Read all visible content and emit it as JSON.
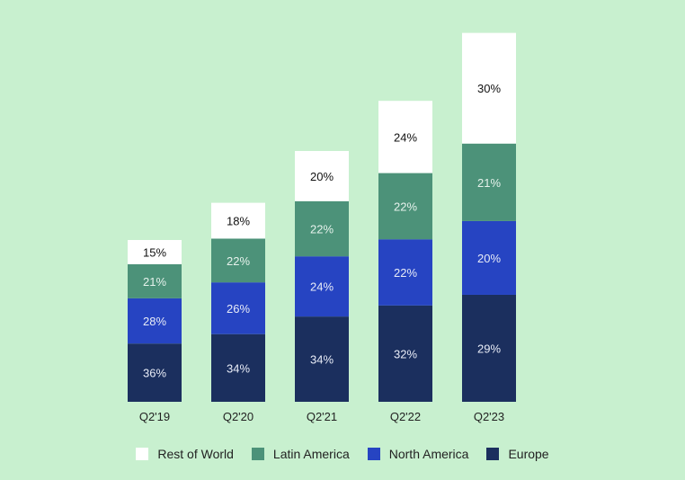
{
  "chart_data": {
    "type": "bar",
    "stacked": true,
    "categories": [
      "Q2'19",
      "Q2'20",
      "Q2'21",
      "Q2'22",
      "Q2'23"
    ],
    "totals": [
      1.0,
      1.23,
      1.55,
      1.86,
      2.28
    ],
    "series": [
      {
        "name": "Europe",
        "color": "#1b2f5e",
        "values": [
          "36%",
          "34%",
          "34%",
          "32%",
          "29%"
        ]
      },
      {
        "name": "North America",
        "color": "#2644c2",
        "values": [
          "28%",
          "26%",
          "24%",
          "22%",
          "20%"
        ]
      },
      {
        "name": "Latin America",
        "color": "#4c9279",
        "values": [
          "21%",
          "22%",
          "22%",
          "22%",
          "21%"
        ]
      },
      {
        "name": "Rest of World",
        "color": "#ffffff",
        "values": [
          "15%",
          "18%",
          "20%",
          "24%",
          "30%"
        ]
      }
    ],
    "legend_order": [
      "Rest of World",
      "Latin America",
      "North America",
      "Europe"
    ],
    "legend_position": "bottom",
    "grid": false,
    "title": "",
    "xlabel": "",
    "ylabel": ""
  }
}
